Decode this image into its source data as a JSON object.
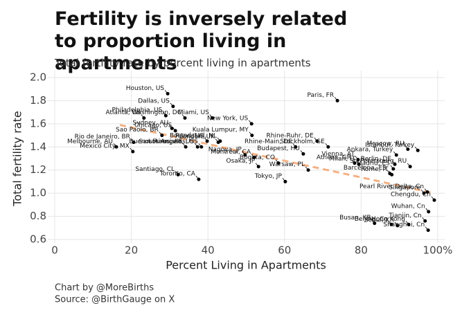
{
  "chart_data": {
    "type": "scatter",
    "title": "Fertility is inversely related to proportion living in apartments",
    "subtitle": "Total fertility rate by percent living in apartments",
    "x_label": "Percent Living in Apartments",
    "y_label": "Total fertility rate",
    "caption": [
      "Chart by @MoreBirths",
      "Source: @BirthGauge on X"
    ],
    "xlim": [
      0,
      100
    ],
    "ylim": [
      0.6,
      2.0
    ],
    "xticks": [
      0,
      20,
      40,
      60,
      80,
      {
        "value": 100,
        "label": "100%"
      }
    ],
    "yticks": [
      {
        "value": 0.6,
        "label": "0.6"
      },
      0.8,
      {
        "value": 1.0,
        "label": "1.0"
      },
      1.2,
      1.4,
      1.6,
      1.8,
      {
        "value": 2.0,
        "label": "2.0"
      }
    ],
    "grid": true,
    "color": "#000000",
    "trendline": {
      "color": "#f4b183",
      "x": [
        17,
        99
      ],
      "y": [
        1.59,
        1.0
      ]
    },
    "labels": [
      "Houston, US",
      "Dallas, US",
      "Philadelphia, US",
      "Washington, DC",
      "Atlanta, US",
      "Miami, US",
      "New York, US",
      "Sydney, AU",
      "Sao Paolo, BR",
      "Chicago, US",
      "London, UK",
      "Kuala Lumpur, MY",
      "Rhine-Ruhr, DE",
      "Paris, FR",
      "Stockholm, SE",
      "Boston, US",
      "Randstad, NL",
      "Rhine-Main, DE",
      "Melbourne, AU",
      "Rio de Janeiro, BR",
      "Buenos Aires, AR",
      "Mexico City, MX",
      "San Francisco, US",
      "Los Angeles, US",
      "Montreal, CA",
      "Nagoya, JP",
      "Budapest, HU",
      "Vienna, AT",
      "Athens, GR",
      "Milan, IT",
      "Santiago, CL",
      "Osaka, JP",
      "Bogota, CO",
      "Warsaw, PL",
      "Toronto, CA",
      "Tokyo, JP",
      "Moscow, RU",
      "Istanbul, Turkey",
      "Ankara, Turkey",
      "St. Petersburg, RU",
      "Berlin, DE",
      "Madrid, ES",
      "Barcelona, ES",
      "Rome, IT",
      "Pearl River Delta, Cn",
      "Singapore",
      "Chengdu, Cn",
      "Wuhan, Cn",
      "Tianjin, Cn",
      "Busan, KR",
      "Beijing, Cn",
      "Seoul, KR",
      "Hong Kong",
      "Shanghai, Cn"
    ],
    "x": [
      29.5,
      30.9,
      29,
      34,
      23.3,
      41.2,
      51.4,
      30.6,
      28,
      31.5,
      42.7,
      51.5,
      68.5,
      73.8,
      71.4,
      39.8,
      43.2,
      62.9,
      16.1,
      20.6,
      34.2,
      20.4,
      37.3,
      38.3,
      52.1,
      49.7,
      64.9,
      79.2,
      78.3,
      79.4,
      32.2,
      53.2,
      58.4,
      66.2,
      37.6,
      60.2,
      92.2,
      94.8,
      89.2,
      92.8,
      88.8,
      88.4,
      87.5,
      88,
      97.3,
      96.4,
      99.1,
      97.6,
      96.7,
      83.5,
      87.9,
      89.5,
      92.4,
      97.5
    ],
    "y": [
      1.86,
      1.75,
      1.67,
      1.65,
      1.65,
      1.65,
      1.6,
      1.56,
      1.5,
      1.54,
      1.44,
      1.5,
      1.45,
      1.8,
      1.4,
      1.45,
      1.45,
      1.4,
      1.4,
      1.44,
      1.4,
      1.36,
      1.4,
      1.4,
      1.31,
      1.33,
      1.34,
      1.29,
      1.26,
      1.25,
      1.16,
      1.23,
      1.26,
      1.2,
      1.12,
      1.1,
      1.38,
      1.37,
      1.33,
      1.23,
      1.25,
      1.21,
      1.17,
      1.16,
      1.01,
      1.0,
      0.94,
      0.84,
      0.76,
      0.74,
      0.73,
      0.72,
      0.73,
      0.68
    ]
  }
}
